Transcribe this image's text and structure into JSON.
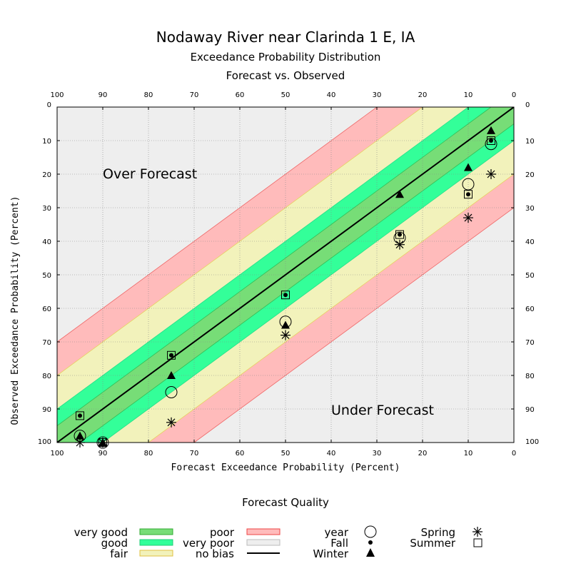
{
  "title": "Nodaway River near Clarinda 1 E, IA",
  "subtitle1": "Exceedance Probability Distribution",
  "subtitle2": "Forecast vs. Observed",
  "chart_data": {
    "type": "scatter",
    "xlabel": "Forecast Exceedance Probability (Percent)",
    "ylabel": "Observed Exceedance Probability (Percent)",
    "xlim": [
      100,
      0
    ],
    "ylim": [
      0,
      100
    ],
    "ticks": [
      "100",
      "90",
      "80",
      "70",
      "60",
      "50",
      "40",
      "30",
      "20",
      "10",
      "0"
    ],
    "right_ticks": [
      "0",
      "10",
      "20",
      "30",
      "40",
      "50",
      "60",
      "70",
      "80",
      "90",
      "100"
    ],
    "grid": true,
    "region_labels": {
      "over": "Over Forecast",
      "under": "Under Forecast"
    },
    "bands": [
      {
        "name": "very good",
        "halfwidth": 5,
        "color": "#77dd77"
      },
      {
        "name": "very poor",
        "halfwidth": 10,
        "color": "#33ff99"
      },
      {
        "name": "fair",
        "halfwidth": 20,
        "color": "#f2f2bb"
      },
      {
        "name": "poor",
        "halfwidth": 30,
        "color": "#ffbbbb"
      }
    ],
    "series": [
      {
        "name": "year",
        "marker": "circle",
        "points": [
          [
            95,
            98
          ],
          [
            90,
            100
          ],
          [
            75,
            85
          ],
          [
            50,
            64
          ],
          [
            25,
            39
          ],
          [
            10,
            23
          ],
          [
            5,
            11
          ]
        ]
      },
      {
        "name": "Fall",
        "marker": "dot",
        "points": [
          [
            95,
            92
          ],
          [
            90,
            100
          ],
          [
            75,
            74
          ],
          [
            50,
            56
          ],
          [
            25,
            38
          ],
          [
            10,
            26
          ],
          [
            5,
            10
          ]
        ]
      },
      {
        "name": "Winter",
        "marker": "triangle",
        "points": [
          [
            95,
            98
          ],
          [
            90,
            100
          ],
          [
            75,
            80
          ],
          [
            50,
            65
          ],
          [
            25,
            26
          ],
          [
            10,
            18
          ],
          [
            5,
            7
          ]
        ]
      },
      {
        "name": "Spring",
        "marker": "asterisk",
        "points": [
          [
            95,
            100
          ],
          [
            90,
            100
          ],
          [
            75,
            94
          ],
          [
            50,
            68
          ],
          [
            25,
            41
          ],
          [
            10,
            33
          ],
          [
            5,
            20
          ]
        ]
      },
      {
        "name": "Summer",
        "marker": "square",
        "points": [
          [
            95,
            92
          ],
          [
            90,
            100
          ],
          [
            75,
            74
          ],
          [
            50,
            56
          ],
          [
            25,
            38
          ],
          [
            10,
            26
          ],
          [
            5,
            10
          ]
        ]
      }
    ]
  },
  "legend": {
    "title": "Forecast Quality",
    "items": {
      "very_good": "very good",
      "good": "good",
      "fair": "fair",
      "poor": "poor",
      "very_poor": "very poor",
      "no_bias": "no bias",
      "year": "year",
      "fall": "Fall",
      "winter": "Winter",
      "spring": "Spring",
      "summer": "Summer"
    },
    "colors": {
      "very_good": "#77dd77",
      "very_poor": "#33ff99",
      "fair": "#f2f2bb",
      "poor": "#ffbbbb",
      "no_bias": "#eeeeee"
    }
  }
}
